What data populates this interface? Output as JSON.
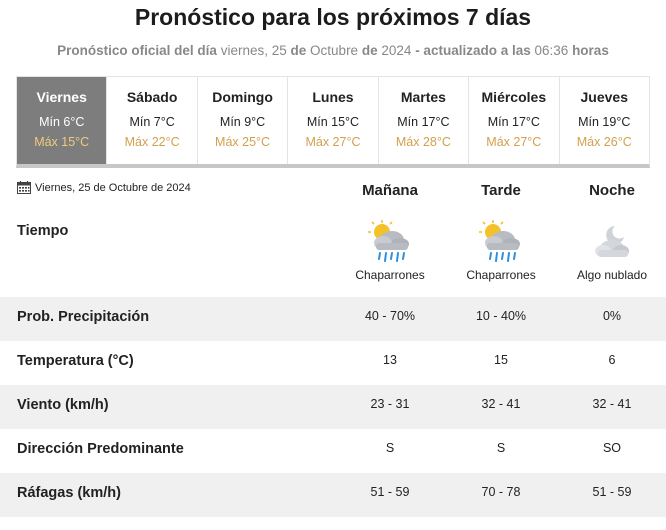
{
  "header": {
    "title": "Pronóstico para los próximos 7 días",
    "subtitle_part1": "Pronóstico oficial del día",
    "subtitle_part2": "viernes, 25",
    "subtitle_part3": "de",
    "subtitle_part4": "Octubre",
    "subtitle_part5": "de",
    "subtitle_part6": "2024",
    "subtitle_part7": "- actualizado a las",
    "subtitle_part8": "06:36",
    "subtitle_part9": "horas"
  },
  "days": [
    {
      "name": "Viernes",
      "min": "Mín 6°C",
      "max": "Máx 15°C",
      "active": true
    },
    {
      "name": "Sábado",
      "min": "Mín 7°C",
      "max": "Máx 22°C"
    },
    {
      "name": "Domingo",
      "min": "Mín 9°C",
      "max": "Máx 25°C"
    },
    {
      "name": "Lunes",
      "min": "Mín 15°C",
      "max": "Máx 27°C"
    },
    {
      "name": "Martes",
      "min": "Mín 17°C",
      "max": "Máx 28°C"
    },
    {
      "name": "Miércoles",
      "min": "Mín 17°C",
      "max": "Máx 27°C"
    },
    {
      "name": "Jueves",
      "min": "Mín 19°C",
      "max": "Máx 26°C"
    }
  ],
  "detail": {
    "date": "Viernes, 25 de Octubre de 2024",
    "date_icon": "calendar-icon",
    "columns": [
      "Mañana",
      "Tarde",
      "Noche"
    ],
    "tiempo_label": "Tiempo",
    "weather": [
      {
        "text": "Chaparrones",
        "icon": "rain-showers-icon"
      },
      {
        "text": "Chaparrones",
        "icon": "rain-showers-icon"
      },
      {
        "text": "Algo nublado",
        "icon": "partly-cloudy-night-icon"
      }
    ],
    "rows": [
      {
        "label": "Prob. Precipitación",
        "values": [
          "40 - 70%",
          "10 - 40%",
          "0%"
        ]
      },
      {
        "label": "Temperatura (°C)",
        "values": [
          "13",
          "15",
          "6"
        ]
      },
      {
        "label": "Viento (km/h)",
        "values": [
          "23 - 31",
          "32 - 41",
          "32 - 41"
        ]
      },
      {
        "label": "Dirección Predominante",
        "values": [
          "S",
          "S",
          "SO"
        ]
      },
      {
        "label": "Ráfagas (km/h)",
        "values": [
          "51 - 59",
          "70 - 78",
          "51 - 59"
        ]
      }
    ]
  },
  "colors": {
    "active_day_bg": "#7d7d7d",
    "max_temp": "#d2a04c",
    "row_shade": "#f0f0f0"
  }
}
